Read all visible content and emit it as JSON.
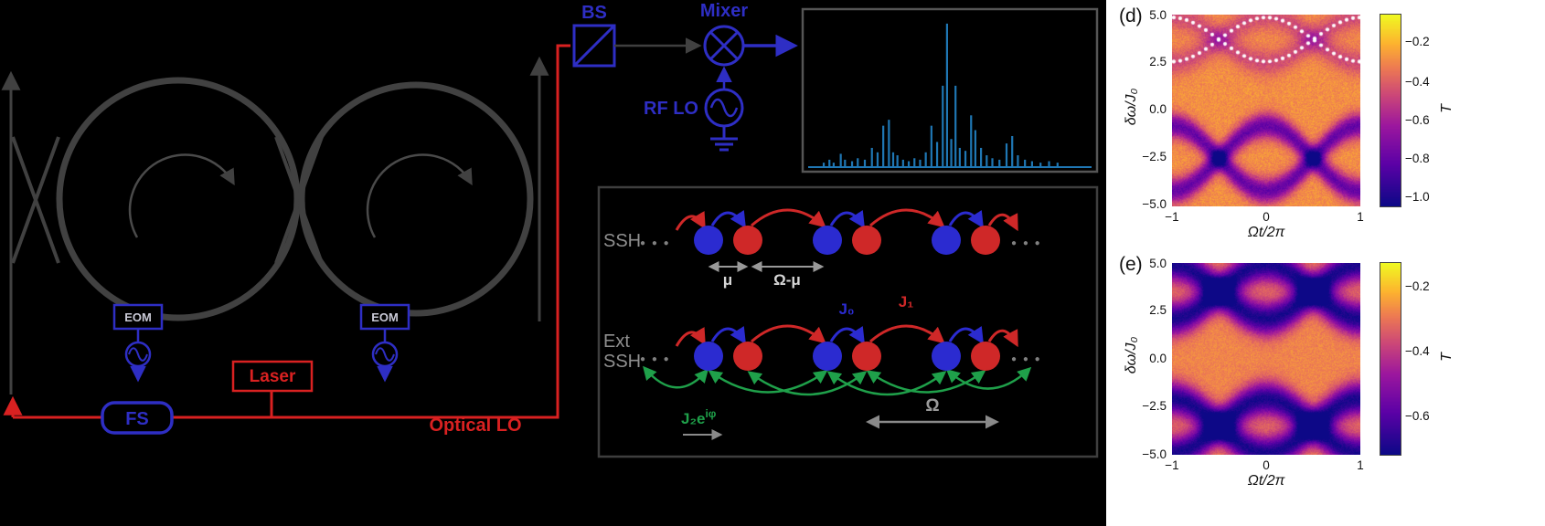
{
  "colors": {
    "background": "#000000",
    "component_navy": "#2e2ec4",
    "optics_red": "#d92121",
    "waveguide_gray": "#414141",
    "spectrum_blue": "#1f77b4",
    "lattice_blue": "#2b2bd0",
    "lattice_red": "#cf2828",
    "lattice_green": "#1fa04a",
    "label_gray": "#8f8f8f",
    "overlay_white": "#ffffff"
  },
  "setup": {
    "bs_label": "BS",
    "mixer_label": "Mixer",
    "rf_lo_label": "RF LO",
    "laser_label": "Laser",
    "fs_label": "FS",
    "eom_label": "EOM",
    "optical_lo_label": "Optical LO"
  },
  "lattice": {
    "row1_label": "SSH",
    "row2_label_line1": "Ext",
    "row2_label_line2": "SSH",
    "mu_label": "μ",
    "omega_mu_label": "Ω-μ",
    "j0_label": "J₀",
    "j1_label": "J₁",
    "j2_label": "J₂e",
    "j2_sup": "iφ",
    "omega_label": "Ω",
    "dots": "● ● ●"
  },
  "panels": {
    "d": {
      "label": "(d)",
      "ylabel": "δω/J₀",
      "xlabel": "Ωt/2π",
      "yticks": [
        "5.0",
        "2.5",
        "0.0",
        "−2.5",
        "−5.0"
      ],
      "xticks": [
        "−1",
        "0",
        "1"
      ],
      "cbar_label": "T",
      "cbar_ticks": [
        "−0.2",
        "−0.4",
        "−0.6",
        "−0.8",
        "−1.0"
      ]
    },
    "e": {
      "label": "(e)",
      "ylabel": "δω/J₀",
      "xlabel": "Ωt/2π",
      "yticks": [
        "5.0",
        "2.5",
        "0.0",
        "−2.5",
        "−5.0"
      ],
      "xticks": [
        "−1",
        "0",
        "1"
      ],
      "cbar_label": "T",
      "cbar_ticks": [
        "−0.2",
        "−0.4",
        "−0.6"
      ]
    }
  },
  "chart_data": [
    {
      "id": "heterodyne-spectrum",
      "type": "bar",
      "note": "Blue frequency-comb-like heterodyne spectrum on black; x = fractional position in panel, h = fractional line height (estimated from pixels; no axis labels shown).",
      "color": "#1f77b4",
      "lines": [
        {
          "x": 0.055,
          "h": 0.03
        },
        {
          "x": 0.075,
          "h": 0.05
        },
        {
          "x": 0.09,
          "h": 0.03
        },
        {
          "x": 0.115,
          "h": 0.09
        },
        {
          "x": 0.13,
          "h": 0.05
        },
        {
          "x": 0.155,
          "h": 0.04
        },
        {
          "x": 0.175,
          "h": 0.06
        },
        {
          "x": 0.2,
          "h": 0.05
        },
        {
          "x": 0.225,
          "h": 0.13
        },
        {
          "x": 0.245,
          "h": 0.1
        },
        {
          "x": 0.265,
          "h": 0.28
        },
        {
          "x": 0.285,
          "h": 0.32
        },
        {
          "x": 0.3,
          "h": 0.1
        },
        {
          "x": 0.315,
          "h": 0.08
        },
        {
          "x": 0.335,
          "h": 0.05
        },
        {
          "x": 0.355,
          "h": 0.04
        },
        {
          "x": 0.375,
          "h": 0.06
        },
        {
          "x": 0.395,
          "h": 0.05
        },
        {
          "x": 0.415,
          "h": 0.1
        },
        {
          "x": 0.435,
          "h": 0.28
        },
        {
          "x": 0.455,
          "h": 0.17
        },
        {
          "x": 0.475,
          "h": 0.55
        },
        {
          "x": 0.49,
          "h": 0.97
        },
        {
          "x": 0.505,
          "h": 0.19
        },
        {
          "x": 0.52,
          "h": 0.55
        },
        {
          "x": 0.535,
          "h": 0.13
        },
        {
          "x": 0.555,
          "h": 0.11
        },
        {
          "x": 0.575,
          "h": 0.35
        },
        {
          "x": 0.59,
          "h": 0.25
        },
        {
          "x": 0.61,
          "h": 0.13
        },
        {
          "x": 0.63,
          "h": 0.08
        },
        {
          "x": 0.65,
          "h": 0.06
        },
        {
          "x": 0.675,
          "h": 0.05
        },
        {
          "x": 0.7,
          "h": 0.16
        },
        {
          "x": 0.72,
          "h": 0.21
        },
        {
          "x": 0.74,
          "h": 0.08
        },
        {
          "x": 0.765,
          "h": 0.05
        },
        {
          "x": 0.79,
          "h": 0.04
        },
        {
          "x": 0.82,
          "h": 0.03
        },
        {
          "x": 0.85,
          "h": 0.04
        },
        {
          "x": 0.88,
          "h": 0.03
        }
      ]
    },
    {
      "id": "panel-d",
      "type": "heatmap",
      "title": "(d)",
      "xlabel": "Ωt/2π",
      "ylabel": "δω/J₀",
      "xlim": [
        -1,
        1
      ],
      "ylim": [
        -5,
        5
      ],
      "colorbar": {
        "label": "T",
        "ticks": [
          -0.2,
          -0.4,
          -0.6,
          -0.8,
          -1.0
        ],
        "range": [
          -0.05,
          -1.05
        ]
      },
      "colormap": "plasma",
      "background_T": -0.28,
      "noise": 0.12,
      "bands": [
        {
          "center": -2.5,
          "amplitude": 1.7,
          "phase": "cos",
          "depth": 0.52,
          "sigma": 0.45
        },
        {
          "center": -2.5,
          "amplitude": 1.7,
          "phase": "-cos",
          "depth": 0.52,
          "sigma": 0.45
        },
        {
          "center": 3.7,
          "amplitude": 1.2,
          "phase": "cos",
          "depth": 0.18,
          "sigma": 0.5
        },
        {
          "center": 3.7,
          "amplitude": 1.2,
          "phase": "-cos",
          "depth": 0.18,
          "sigma": 0.5
        }
      ],
      "overlay": {
        "type": "dotted-sine-pair",
        "color": "#ffffff",
        "center": 3.7,
        "amplitude": 1.15
      },
      "note": "Transmission map: dark sinusoidal bands crossing near δω/J₀≈−2.5; white dotted sinusoid pair overlaid between 2.5 and 5. Values estimated from colorbar."
    },
    {
      "id": "panel-e",
      "type": "heatmap",
      "title": "(e)",
      "xlabel": "Ωt/2π",
      "ylabel": "δω/J₀",
      "xlim": [
        -1,
        1
      ],
      "ylim": [
        -5,
        5
      ],
      "colorbar": {
        "label": "T",
        "ticks": [
          -0.2,
          -0.4,
          -0.6
        ],
        "range": [
          -0.13,
          -0.72
        ]
      },
      "colormap": "plasma",
      "background_T": -0.28,
      "noise": 0.06,
      "bands": [
        {
          "center": 3.5,
          "amplitude": 1.4,
          "phase": "cos",
          "depth": 0.42,
          "sigma": 0.6
        },
        {
          "center": 3.5,
          "amplitude": 1.4,
          "phase": "-cos",
          "depth": 0.42,
          "sigma": 0.6
        },
        {
          "center": -3.5,
          "amplitude": 1.4,
          "phase": "cos",
          "depth": 0.42,
          "sigma": 0.6
        },
        {
          "center": -3.5,
          "amplitude": 1.4,
          "phase": "-cos",
          "depth": 0.42,
          "sigma": 0.6
        }
      ],
      "note": "Transmission map: dark crossing sinusoidal bands near δω/J₀≈±3.5, clear band through the middle. Values estimated from colorbar."
    }
  ]
}
